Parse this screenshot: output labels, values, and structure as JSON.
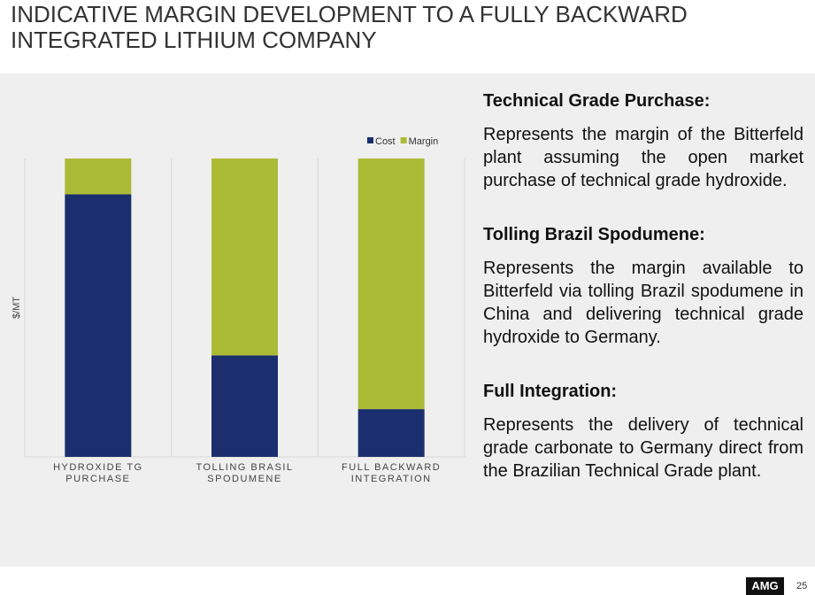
{
  "title": "INDICATIVE MARGIN DEVELOPMENT TO A FULLY BACKWARD INTEGRATED LITHIUM COMPANY",
  "chart_data": {
    "type": "stacked-bar",
    "ylabel": "$/MT",
    "categories": [
      "HYDROXIDE TG PURCHASE",
      "TOLLING BRASIL SPODUMENE",
      "FULL BACKWARD INTEGRATION"
    ],
    "series": [
      {
        "name": "Cost",
        "color": "#1b2f6e",
        "values": [
          88,
          34,
          16
        ]
      },
      {
        "name": "Margin",
        "color": "#acbb36",
        "values": [
          12,
          66,
          84
        ]
      }
    ],
    "ylim": [
      0,
      100
    ],
    "legend": "top-right"
  },
  "sections": [
    {
      "heading": "Technical Grade Purchase:",
      "body": "Represents the margin of the Bitterfeld plant assuming the open market purchase of technical grade hydroxide."
    },
    {
      "heading": "Tolling Brazil Spodumene:",
      "body": "Represents the margin available to Bitterfeld via tolling Brazil spodumene in China and delivering technical grade hydroxide to Germany."
    },
    {
      "heading": "Full Integration:",
      "body": "Represents the delivery of technical grade carbonate to Germany direct from the Brazilian Technical Grade plant."
    }
  ],
  "footer": {
    "logo": "AMG",
    "page": "25"
  }
}
